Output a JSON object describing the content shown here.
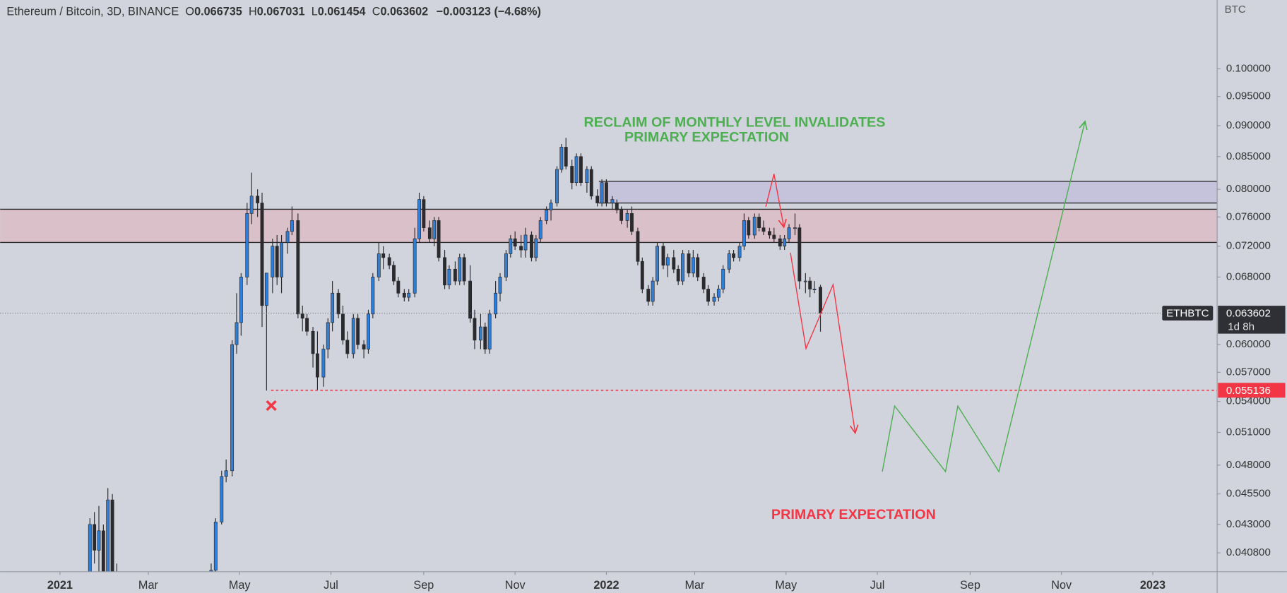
{
  "chart_data": {
    "type": "candlestick",
    "header": {
      "symbol": "Ethereum / Bitcoin, 3D, BINANCE",
      "ohlc_labels": [
        "O",
        "H",
        "L",
        "C"
      ],
      "change": "−0.003123 (−4.68%)"
    },
    "unit": "BTC",
    "ticker": "ETHBTC",
    "countdown": "1d 8h",
    "log_scale": true,
    "ylim": [
      0.0394,
      0.1136
    ],
    "yticks": [
      {
        "value": 0.1,
        "label": "0.100000"
      },
      {
        "value": 0.095,
        "label": "0.095000"
      },
      {
        "value": 0.09,
        "label": "0.090000"
      },
      {
        "value": 0.085,
        "label": "0.085000"
      },
      {
        "value": 0.08,
        "label": "0.080000"
      },
      {
        "value": 0.076,
        "label": "0.076000"
      },
      {
        "value": 0.072,
        "label": "0.072000"
      },
      {
        "value": 0.068,
        "label": "0.068000"
      },
      {
        "value": 0.06,
        "label": "0.060000"
      },
      {
        "value": 0.057,
        "label": "0.057000"
      },
      {
        "value": 0.054,
        "label": "0.054000"
      },
      {
        "value": 0.051,
        "label": "0.051000"
      },
      {
        "value": 0.048,
        "label": "0.048000"
      },
      {
        "value": 0.0455,
        "label": "0.045500"
      },
      {
        "value": 0.043,
        "label": "0.043000"
      },
      {
        "value": 0.0408,
        "label": "0.040800"
      }
    ],
    "xlim": [
      -40,
      773
    ],
    "xticks": [
      {
        "value": 0,
        "label": "2021"
      },
      {
        "value": 59,
        "label": "Mar"
      },
      {
        "value": 120,
        "label": "May"
      },
      {
        "value": 181,
        "label": "Jul"
      },
      {
        "value": 243,
        "label": "Sep"
      },
      {
        "value": 304,
        "label": "Nov"
      },
      {
        "value": 365,
        "label": "2022"
      },
      {
        "value": 424,
        "label": "Mar"
      },
      {
        "value": 485,
        "label": "May"
      },
      {
        "value": 546,
        "label": "Jul"
      },
      {
        "value": 608,
        "label": "Sep"
      },
      {
        "value": 669,
        "label": "Nov"
      },
      {
        "value": 730,
        "label": "2023"
      }
    ],
    "up_color": "#2f7fd9",
    "down_color": "#2b2b2e",
    "zones": [
      {
        "from": -40,
        "low": 0.0725,
        "high": 0.0771,
        "color": "#dcbcc4"
      },
      {
        "from": 360,
        "low": 0.078,
        "high": 0.0812,
        "color": "#c3bedb"
      }
    ],
    "levels": [
      {
        "from": 141,
        "value": 0.055136,
        "color": "#f23645"
      }
    ],
    "annotations": [
      {
        "text": "RECLAIM OF MONTHLY LEVEL INVALIDATES",
        "color": "#4caf50"
      },
      {
        "text": "PRIMARY EXPECTATION",
        "color": "#4caf50"
      },
      {
        "text": "PRIMARY EXPECTATION",
        "color": "#f23645"
      }
    ],
    "candles": [
      {
        "x": 20,
        "open": 0.038,
        "high": 0.0435,
        "low": 0.037,
        "close": 0.043
      },
      {
        "x": 23,
        "open": 0.043,
        "high": 0.044,
        "low": 0.04,
        "close": 0.041
      },
      {
        "x": 26,
        "open": 0.041,
        "high": 0.0445,
        "low": 0.039,
        "close": 0.0425
      },
      {
        "x": 29,
        "open": 0.0425,
        "high": 0.043,
        "low": 0.038,
        "close": 0.039
      },
      {
        "x": 32,
        "open": 0.039,
        "high": 0.046,
        "low": 0.0385,
        "close": 0.045
      },
      {
        "x": 35,
        "open": 0.045,
        "high": 0.0455,
        "low": 0.038,
        "close": 0.0385
      },
      {
        "x": 38,
        "open": 0.0385,
        "high": 0.04,
        "low": 0.036,
        "close": 0.037
      },
      {
        "x": 101,
        "open": 0.0385,
        "high": 0.04,
        "low": 0.038,
        "close": 0.0395
      },
      {
        "x": 104,
        "open": 0.0395,
        "high": 0.0435,
        "low": 0.039,
        "close": 0.0432
      },
      {
        "x": 108,
        "open": 0.0432,
        "high": 0.0475,
        "low": 0.043,
        "close": 0.047
      },
      {
        "x": 111,
        "open": 0.047,
        "high": 0.0485,
        "low": 0.0465,
        "close": 0.0475
      },
      {
        "x": 115,
        "open": 0.0475,
        "high": 0.0605,
        "low": 0.047,
        "close": 0.06
      },
      {
        "x": 118,
        "open": 0.06,
        "high": 0.066,
        "low": 0.059,
        "close": 0.0625
      },
      {
        "x": 121,
        "open": 0.0625,
        "high": 0.0685,
        "low": 0.061,
        "close": 0.068
      },
      {
        "x": 125,
        "open": 0.068,
        "high": 0.078,
        "low": 0.067,
        "close": 0.0765
      },
      {
        "x": 128,
        "open": 0.0765,
        "high": 0.0825,
        "low": 0.075,
        "close": 0.079
      },
      {
        "x": 132,
        "open": 0.079,
        "high": 0.08,
        "low": 0.076,
        "close": 0.078
      },
      {
        "x": 135,
        "open": 0.078,
        "high": 0.0795,
        "low": 0.062,
        "close": 0.0645
      },
      {
        "x": 138,
        "open": 0.0645,
        "high": 0.0685,
        "low": 0.0551,
        "close": 0.0685
      },
      {
        "x": 142,
        "open": 0.068,
        "high": 0.073,
        "low": 0.066,
        "close": 0.072
      },
      {
        "x": 145,
        "open": 0.072,
        "high": 0.0735,
        "low": 0.067,
        "close": 0.068
      },
      {
        "x": 148,
        "open": 0.068,
        "high": 0.0735,
        "low": 0.066,
        "close": 0.0725
      },
      {
        "x": 152,
        "open": 0.0725,
        "high": 0.0745,
        "low": 0.071,
        "close": 0.074
      },
      {
        "x": 155,
        "open": 0.074,
        "high": 0.0775,
        "low": 0.0735,
        "close": 0.0755
      },
      {
        "x": 159,
        "open": 0.0755,
        "high": 0.0765,
        "low": 0.063,
        "close": 0.0635
      },
      {
        "x": 162,
        "open": 0.0635,
        "high": 0.0645,
        "low": 0.0615,
        "close": 0.063
      },
      {
        "x": 165,
        "open": 0.063,
        "high": 0.0635,
        "low": 0.061,
        "close": 0.0615
      },
      {
        "x": 169,
        "open": 0.0615,
        "high": 0.062,
        "low": 0.0575,
        "close": 0.059
      },
      {
        "x": 172,
        "open": 0.059,
        "high": 0.0615,
        "low": 0.0551,
        "close": 0.0565
      },
      {
        "x": 176,
        "open": 0.0565,
        "high": 0.06,
        "low": 0.0555,
        "close": 0.0595
      },
      {
        "x": 179,
        "open": 0.0595,
        "high": 0.063,
        "low": 0.0585,
        "close": 0.0625
      },
      {
        "x": 182,
        "open": 0.0625,
        "high": 0.0675,
        "low": 0.0615,
        "close": 0.066
      },
      {
        "x": 186,
        "open": 0.066,
        "high": 0.0665,
        "low": 0.063,
        "close": 0.0635
      },
      {
        "x": 189,
        "open": 0.0635,
        "high": 0.0645,
        "low": 0.06,
        "close": 0.0605
      },
      {
        "x": 192,
        "open": 0.0605,
        "high": 0.0615,
        "low": 0.0585,
        "close": 0.059
      },
      {
        "x": 196,
        "open": 0.059,
        "high": 0.0635,
        "low": 0.0585,
        "close": 0.063
      },
      {
        "x": 199,
        "open": 0.063,
        "high": 0.0635,
        "low": 0.0595,
        "close": 0.06
      },
      {
        "x": 203,
        "open": 0.06,
        "high": 0.0605,
        "low": 0.0585,
        "close": 0.0595
      },
      {
        "x": 206,
        "open": 0.0595,
        "high": 0.064,
        "low": 0.059,
        "close": 0.0635
      },
      {
        "x": 209,
        "open": 0.0635,
        "high": 0.0685,
        "low": 0.063,
        "close": 0.068
      },
      {
        "x": 213,
        "open": 0.068,
        "high": 0.0725,
        "low": 0.0675,
        "close": 0.071
      },
      {
        "x": 216,
        "open": 0.071,
        "high": 0.072,
        "low": 0.069,
        "close": 0.0705
      },
      {
        "x": 220,
        "open": 0.0705,
        "high": 0.071,
        "low": 0.069,
        "close": 0.0695
      },
      {
        "x": 223,
        "open": 0.0695,
        "high": 0.07,
        "low": 0.067,
        "close": 0.0675
      },
      {
        "x": 226,
        "open": 0.0675,
        "high": 0.068,
        "low": 0.0655,
        "close": 0.066
      },
      {
        "x": 230,
        "open": 0.066,
        "high": 0.0665,
        "low": 0.065,
        "close": 0.0655
      },
      {
        "x": 233,
        "open": 0.0655,
        "high": 0.0665,
        "low": 0.065,
        "close": 0.066
      },
      {
        "x": 237,
        "open": 0.066,
        "high": 0.0745,
        "low": 0.0655,
        "close": 0.073
      },
      {
        "x": 240,
        "open": 0.073,
        "high": 0.0795,
        "low": 0.0725,
        "close": 0.0785
      },
      {
        "x": 243,
        "open": 0.0785,
        "high": 0.079,
        "low": 0.074,
        "close": 0.0745
      },
      {
        "x": 247,
        "open": 0.0745,
        "high": 0.0755,
        "low": 0.0725,
        "close": 0.073
      },
      {
        "x": 250,
        "open": 0.073,
        "high": 0.076,
        "low": 0.072,
        "close": 0.0755
      },
      {
        "x": 253,
        "open": 0.0755,
        "high": 0.076,
        "low": 0.07,
        "close": 0.0705
      },
      {
        "x": 257,
        "open": 0.0705,
        "high": 0.0715,
        "low": 0.0665,
        "close": 0.067
      },
      {
        "x": 260,
        "open": 0.067,
        "high": 0.0695,
        "low": 0.0665,
        "close": 0.069
      },
      {
        "x": 264,
        "open": 0.069,
        "high": 0.07,
        "low": 0.067,
        "close": 0.0675
      },
      {
        "x": 267,
        "open": 0.0675,
        "high": 0.071,
        "low": 0.067,
        "close": 0.0705
      },
      {
        "x": 270,
        "open": 0.0705,
        "high": 0.071,
        "low": 0.067,
        "close": 0.0675
      },
      {
        "x": 274,
        "open": 0.0675,
        "high": 0.0695,
        "low": 0.0625,
        "close": 0.063
      },
      {
        "x": 277,
        "open": 0.063,
        "high": 0.064,
        "low": 0.0595,
        "close": 0.0605
      },
      {
        "x": 281,
        "open": 0.0605,
        "high": 0.0635,
        "low": 0.0595,
        "close": 0.062
      },
      {
        "x": 284,
        "open": 0.062,
        "high": 0.0625,
        "low": 0.059,
        "close": 0.0595
      },
      {
        "x": 287,
        "open": 0.0595,
        "high": 0.064,
        "low": 0.059,
        "close": 0.0635
      },
      {
        "x": 291,
        "open": 0.0635,
        "high": 0.0675,
        "low": 0.063,
        "close": 0.066
      },
      {
        "x": 294,
        "open": 0.066,
        "high": 0.0685,
        "low": 0.065,
        "close": 0.068
      },
      {
        "x": 298,
        "open": 0.068,
        "high": 0.0715,
        "low": 0.0675,
        "close": 0.071
      },
      {
        "x": 301,
        "open": 0.071,
        "high": 0.0735,
        "low": 0.0705,
        "close": 0.073
      },
      {
        "x": 304,
        "open": 0.073,
        "high": 0.074,
        "low": 0.0715,
        "close": 0.072
      },
      {
        "x": 308,
        "open": 0.072,
        "high": 0.0735,
        "low": 0.0705,
        "close": 0.0715
      },
      {
        "x": 311,
        "open": 0.0715,
        "high": 0.0745,
        "low": 0.0705,
        "close": 0.0735
      },
      {
        "x": 315,
        "open": 0.0735,
        "high": 0.074,
        "low": 0.07,
        "close": 0.0705
      },
      {
        "x": 318,
        "open": 0.0705,
        "high": 0.0735,
        "low": 0.07,
        "close": 0.073
      },
      {
        "x": 321,
        "open": 0.073,
        "high": 0.076,
        "low": 0.0725,
        "close": 0.0755
      },
      {
        "x": 325,
        "open": 0.0755,
        "high": 0.0775,
        "low": 0.075,
        "close": 0.077
      },
      {
        "x": 328,
        "open": 0.077,
        "high": 0.0785,
        "low": 0.0755,
        "close": 0.078
      },
      {
        "x": 332,
        "open": 0.078,
        "high": 0.0835,
        "low": 0.0775,
        "close": 0.083
      },
      {
        "x": 335,
        "open": 0.083,
        "high": 0.087,
        "low": 0.0825,
        "close": 0.0865
      },
      {
        "x": 338,
        "open": 0.0865,
        "high": 0.088,
        "low": 0.083,
        "close": 0.0835
      },
      {
        "x": 342,
        "open": 0.0835,
        "high": 0.0845,
        "low": 0.08,
        "close": 0.081
      },
      {
        "x": 345,
        "open": 0.081,
        "high": 0.0855,
        "low": 0.0805,
        "close": 0.085
      },
      {
        "x": 348,
        "open": 0.085,
        "high": 0.0855,
        "low": 0.0805,
        "close": 0.081
      },
      {
        "x": 352,
        "open": 0.081,
        "high": 0.0835,
        "low": 0.0795,
        "close": 0.083
      },
      {
        "x": 355,
        "open": 0.083,
        "high": 0.0835,
        "low": 0.0785,
        "close": 0.079
      },
      {
        "x": 359,
        "open": 0.079,
        "high": 0.08,
        "low": 0.0775,
        "close": 0.078
      },
      {
        "x": 362,
        "open": 0.078,
        "high": 0.0815,
        "low": 0.0775,
        "close": 0.081
      },
      {
        "x": 365,
        "open": 0.081,
        "high": 0.0815,
        "low": 0.0775,
        "close": 0.078
      },
      {
        "x": 369,
        "open": 0.078,
        "high": 0.079,
        "low": 0.077,
        "close": 0.0785
      },
      {
        "x": 372,
        "open": 0.078,
        "high": 0.0785,
        "low": 0.0765,
        "close": 0.077
      },
      {
        "x": 375,
        "open": 0.077,
        "high": 0.0775,
        "low": 0.075,
        "close": 0.0755
      },
      {
        "x": 379,
        "open": 0.0755,
        "high": 0.077,
        "low": 0.0745,
        "close": 0.0765
      },
      {
        "x": 382,
        "open": 0.0765,
        "high": 0.0775,
        "low": 0.0735,
        "close": 0.074
      },
      {
        "x": 386,
        "open": 0.074,
        "high": 0.0745,
        "low": 0.0695,
        "close": 0.07
      },
      {
        "x": 389,
        "open": 0.07,
        "high": 0.0705,
        "low": 0.066,
        "close": 0.0665
      },
      {
        "x": 393,
        "open": 0.0665,
        "high": 0.067,
        "low": 0.0645,
        "close": 0.065
      },
      {
        "x": 396,
        "open": 0.065,
        "high": 0.068,
        "low": 0.0645,
        "close": 0.0675
      },
      {
        "x": 399,
        "open": 0.0675,
        "high": 0.0725,
        "low": 0.067,
        "close": 0.072
      },
      {
        "x": 403,
        "open": 0.072,
        "high": 0.0725,
        "low": 0.069,
        "close": 0.0695
      },
      {
        "x": 406,
        "open": 0.0695,
        "high": 0.071,
        "low": 0.068,
        "close": 0.0705
      },
      {
        "x": 410,
        "open": 0.0705,
        "high": 0.0715,
        "low": 0.0685,
        "close": 0.069
      },
      {
        "x": 413,
        "open": 0.069,
        "high": 0.0695,
        "low": 0.067,
        "close": 0.0675
      },
      {
        "x": 416,
        "open": 0.0675,
        "high": 0.0715,
        "low": 0.067,
        "close": 0.071
      },
      {
        "x": 420,
        "open": 0.071,
        "high": 0.0715,
        "low": 0.068,
        "close": 0.0685
      },
      {
        "x": 423,
        "open": 0.0685,
        "high": 0.0715,
        "low": 0.068,
        "close": 0.0705
      },
      {
        "x": 426,
        "open": 0.0705,
        "high": 0.071,
        "low": 0.0675,
        "close": 0.068
      },
      {
        "x": 430,
        "open": 0.068,
        "high": 0.0685,
        "low": 0.066,
        "close": 0.0665
      },
      {
        "x": 433,
        "open": 0.0665,
        "high": 0.067,
        "low": 0.0645,
        "close": 0.065
      },
      {
        "x": 437,
        "open": 0.065,
        "high": 0.066,
        "low": 0.0645,
        "close": 0.0655
      },
      {
        "x": 440,
        "open": 0.0655,
        "high": 0.067,
        "low": 0.065,
        "close": 0.0665
      },
      {
        "x": 443,
        "open": 0.0665,
        "high": 0.0695,
        "low": 0.066,
        "close": 0.069
      },
      {
        "x": 447,
        "open": 0.069,
        "high": 0.0715,
        "low": 0.0685,
        "close": 0.071
      },
      {
        "x": 450,
        "open": 0.071,
        "high": 0.0715,
        "low": 0.07,
        "close": 0.0705
      },
      {
        "x": 454,
        "open": 0.0705,
        "high": 0.0725,
        "low": 0.07,
        "close": 0.072
      },
      {
        "x": 457,
        "open": 0.072,
        "high": 0.0765,
        "low": 0.0715,
        "close": 0.0755
      },
      {
        "x": 460,
        "open": 0.0755,
        "high": 0.076,
        "low": 0.073,
        "close": 0.0735
      },
      {
        "x": 464,
        "open": 0.0735,
        "high": 0.0765,
        "low": 0.073,
        "close": 0.076
      },
      {
        "x": 467,
        "open": 0.076,
        "high": 0.0765,
        "low": 0.074,
        "close": 0.0745
      },
      {
        "x": 470,
        "open": 0.0745,
        "high": 0.0755,
        "low": 0.0735,
        "close": 0.074
      },
      {
        "x": 474,
        "open": 0.074,
        "high": 0.0745,
        "low": 0.073,
        "close": 0.0735
      },
      {
        "x": 477,
        "open": 0.0735,
        "high": 0.0745,
        "low": 0.0725,
        "close": 0.073
      },
      {
        "x": 481,
        "open": 0.073,
        "high": 0.0735,
        "low": 0.0715,
        "close": 0.072
      },
      {
        "x": 484,
        "open": 0.072,
        "high": 0.0735,
        "low": 0.0715,
        "close": 0.073
      },
      {
        "x": 487,
        "open": 0.073,
        "high": 0.075,
        "low": 0.0725,
        "close": 0.0745
      },
      {
        "x": 491,
        "open": 0.0745,
        "high": 0.0765,
        "low": 0.0735,
        "close": 0.0745
      },
      {
        "x": 494,
        "open": 0.0745,
        "high": 0.075,
        "low": 0.0665,
        "close": 0.0675
      },
      {
        "x": 498,
        "open": 0.0675,
        "high": 0.0685,
        "low": 0.066,
        "close": 0.0675
      },
      {
        "x": 501,
        "open": 0.0675,
        "high": 0.068,
        "low": 0.0655,
        "close": 0.0665
      },
      {
        "x": 504,
        "open": 0.0665,
        "high": 0.0675,
        "low": 0.066,
        "close": 0.0665
      },
      {
        "x": 508,
        "open": 0.066735,
        "high": 0.067031,
        "low": 0.061454,
        "close": 0.063602
      }
    ]
  }
}
